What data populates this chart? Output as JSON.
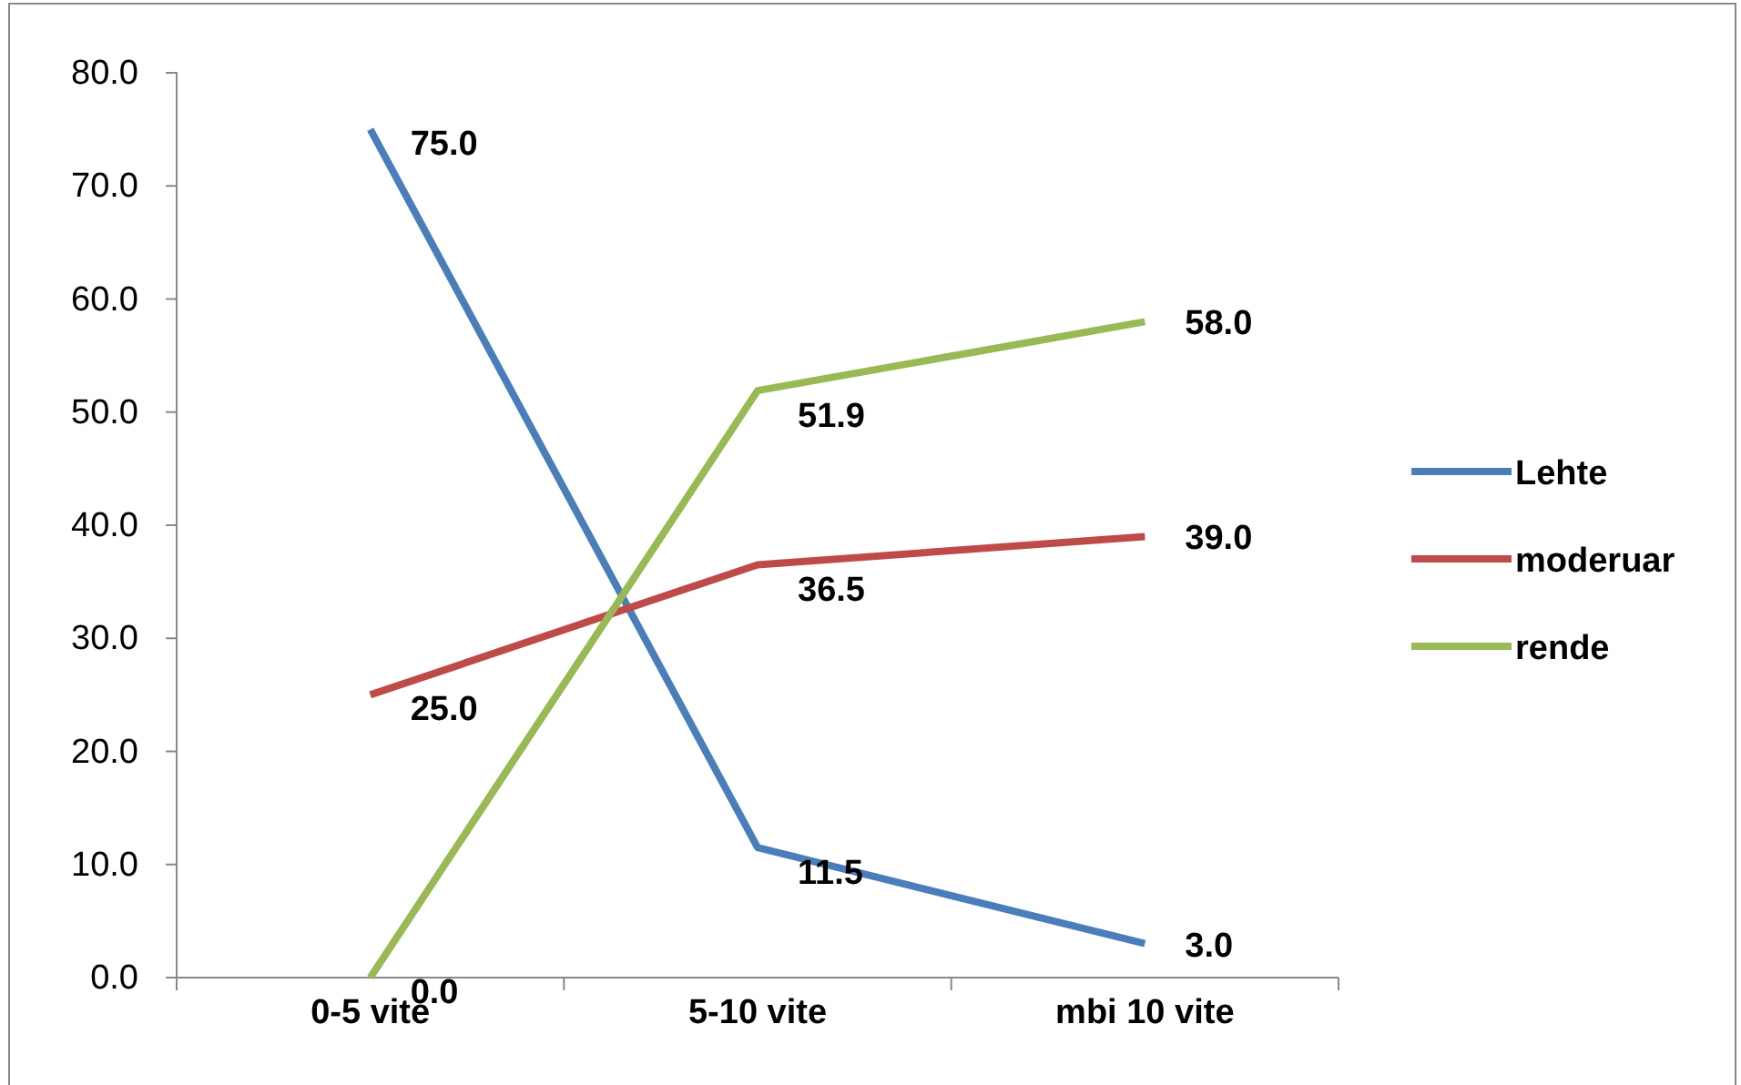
{
  "chart_data": {
    "type": "line",
    "categories": [
      "0-5 vite",
      "5-10 vite",
      "mbi 10 vite"
    ],
    "series": [
      {
        "name": "Lehte",
        "color": "#4a7ebb",
        "values": [
          75.0,
          11.5,
          3.0
        ],
        "value_labels": [
          "75.0",
          "11.5",
          "3.0"
        ]
      },
      {
        "name": "moderuar",
        "color": "#be4b48",
        "values": [
          25.0,
          36.5,
          39.0
        ],
        "value_labels": [
          "25.0",
          "36.5",
          "39.0"
        ]
      },
      {
        "name": "rende",
        "color": "#98b954",
        "values": [
          0.0,
          51.9,
          58.0
        ],
        "value_labels": [
          "0.0",
          "51.9",
          "58.0"
        ]
      }
    ],
    "ylim": [
      0,
      80
    ],
    "yticks": [
      {
        "value": 0,
        "label": "0.0"
      },
      {
        "value": 10,
        "label": "10.0"
      },
      {
        "value": 20,
        "label": "20.0"
      },
      {
        "value": 30,
        "label": "30.0"
      },
      {
        "value": 40,
        "label": "40.0"
      },
      {
        "value": 50,
        "label": "50.0"
      },
      {
        "value": 60,
        "label": "60.0"
      },
      {
        "value": 70,
        "label": "70.0"
      },
      {
        "value": 80,
        "label": "80.0"
      }
    ],
    "legend": "right",
    "grid": false,
    "marker": "none",
    "line_style": "solid"
  }
}
